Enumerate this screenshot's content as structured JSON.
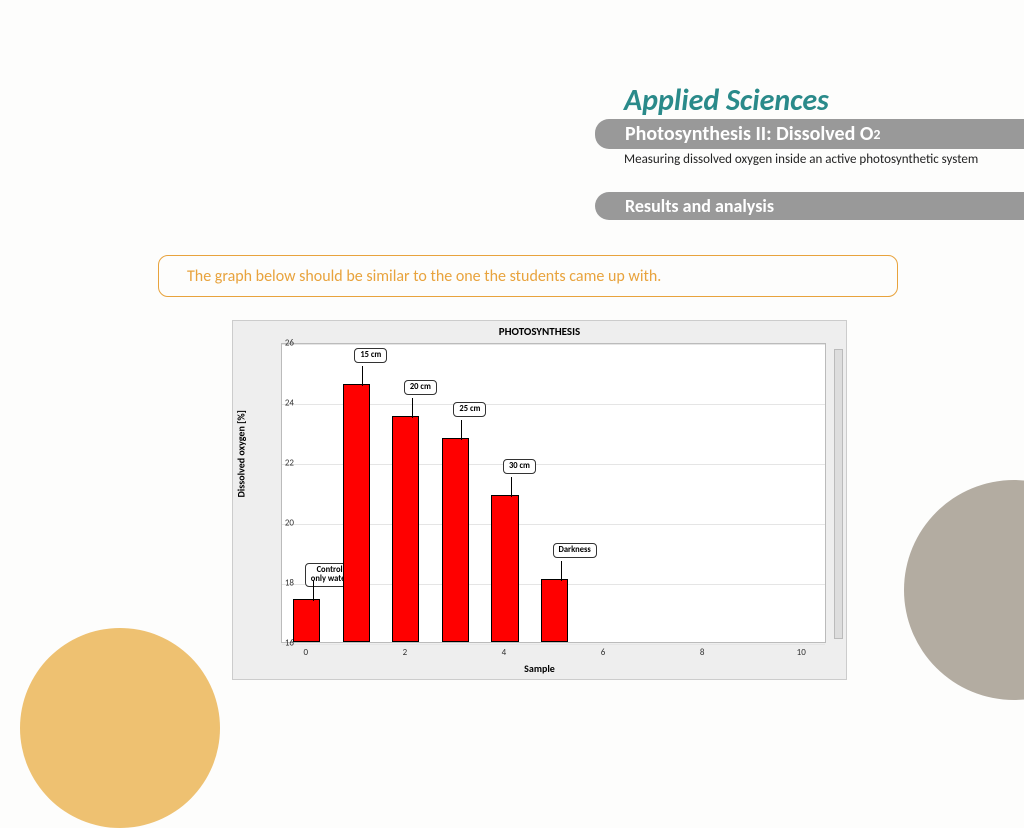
{
  "header": {
    "brand": "Applied Sciences",
    "title_prefix": "Photosynthesis II: Dissolved O",
    "title_sub": "2",
    "description": "Measuring dissolved oxygen inside an active photosynthetic system",
    "section": "Results and analysis"
  },
  "instruction": "The graph below should be similar to the one the students came up with.",
  "chart": {
    "type": "bar",
    "title": "PHOTOSYNTHESIS",
    "xlabel": "Sample",
    "ylabel": "Dissolved oxygen [%]",
    "ylim": [
      16,
      26
    ],
    "yticks": [
      16,
      18,
      20,
      22,
      24,
      26
    ],
    "xlim": [
      -0.5,
      10.5
    ],
    "xticks": [
      0,
      2,
      4,
      6,
      8,
      10
    ],
    "bar_color": "#ff0000",
    "bar_border": "#000000",
    "background_color": "#ffffff",
    "panel_color": "#eeeeee",
    "grid_color": "#e5e5e5",
    "bar_width_units": 0.55,
    "bars": [
      {
        "x": 0,
        "value": 17.45,
        "label": "Control only water"
      },
      {
        "x": 1,
        "value": 24.6,
        "label": "15 cm"
      },
      {
        "x": 2,
        "value": 23.55,
        "label": "20 cm"
      },
      {
        "x": 3,
        "value": 22.8,
        "label": "25 cm"
      },
      {
        "x": 4,
        "value": 20.9,
        "label": "30 cm"
      },
      {
        "x": 5,
        "value": 18.1,
        "label": "Darkness"
      }
    ],
    "title_fontsize": 11,
    "label_fontsize": 10,
    "tick_fontsize": 9,
    "callout_fontsize": 8.5
  },
  "decor": {
    "orange": "#eec171",
    "grey": "#b3aca1"
  }
}
